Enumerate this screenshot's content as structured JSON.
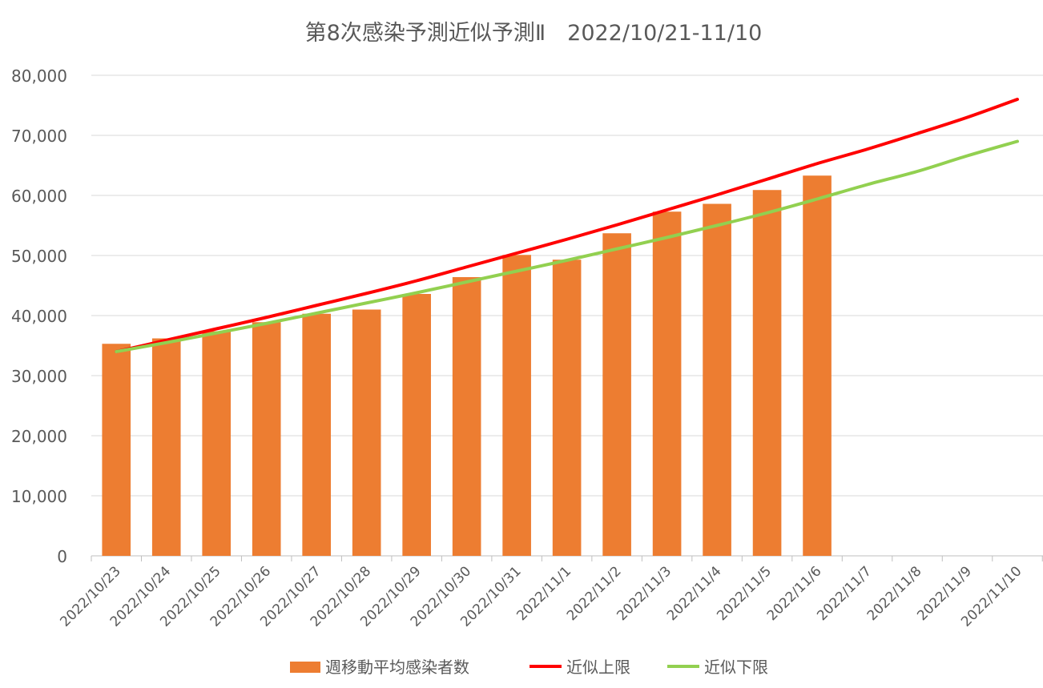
{
  "chart_data": {
    "type": "bar+line",
    "title": "第8次感染予測近似予測Ⅱ　2022/10/21-11/10",
    "categories": [
      "2022/10/23",
      "2022/10/24",
      "2022/10/25",
      "2022/10/26",
      "2022/10/27",
      "2022/10/28",
      "2022/10/29",
      "2022/10/30",
      "2022/10/31",
      "2022/11/1",
      "2022/11/2",
      "2022/11/3",
      "2022/11/4",
      "2022/11/5",
      "2022/11/6",
      "2022/11/7",
      "2022/11/8",
      "2022/11/9",
      "2022/11/10"
    ],
    "yticks": [
      "0",
      "10,000",
      "20,000",
      "30,000",
      "40,000",
      "50,000",
      "60,000",
      "70,000",
      "80,000"
    ],
    "ylim": [
      0,
      80000
    ],
    "grid": true,
    "legend_position": "bottom",
    "series": [
      {
        "name": "週移動平均感染者数",
        "kind": "bar",
        "color": "#ED7D31",
        "values": [
          35300,
          36200,
          37400,
          38900,
          40300,
          41000,
          43600,
          46400,
          50100,
          49300,
          53700,
          57300,
          58600,
          60900,
          63300,
          null,
          null,
          null,
          null
        ]
      },
      {
        "name": "近似上限",
        "kind": "line",
        "color": "#FF0000",
        "values": [
          34000,
          35900,
          37800,
          39700,
          41700,
          43700,
          45800,
          48100,
          50400,
          52700,
          55100,
          57600,
          60100,
          62700,
          65300,
          67700,
          70300,
          73000,
          76000
        ]
      },
      {
        "name": "近似下限",
        "kind": "line",
        "color": "#92D050",
        "values": [
          34000,
          35500,
          37100,
          38700,
          40400,
          42100,
          43800,
          45600,
          47400,
          49200,
          51100,
          53000,
          55000,
          57100,
          59400,
          61800,
          64000,
          66600,
          69000
        ]
      }
    ]
  }
}
